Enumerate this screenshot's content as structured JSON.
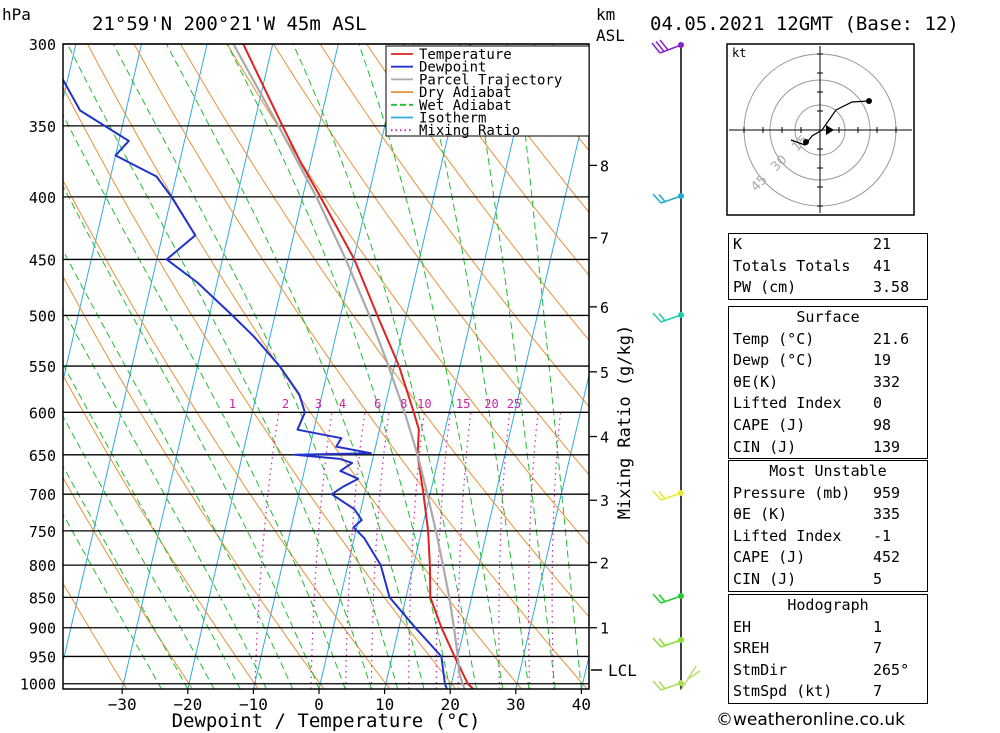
{
  "header": {
    "location": "21°59'N 200°21'W 45m ASL",
    "datetime": "04.05.2021 12GMT (Base: 12)",
    "pressure_unit": "hPa",
    "km_label": "km",
    "asl_label": "ASL"
  },
  "axes": {
    "xlabel": "Dewpoint / Temperature (°C)",
    "mixing_ratio_label": "Mixing Ratio (g/kg)",
    "lcl_label": "LCL",
    "hodo_unit": "kt"
  },
  "chart_data": {
    "type": "line",
    "title": "21°59'N 200°21'W 45m ASL",
    "xlabel": "Dewpoint / Temperature (°C)",
    "ylabel": "hPa",
    "xlim": [
      -40,
      40
    ],
    "pressure_levels": [
      300,
      350,
      400,
      450,
      500,
      550,
      600,
      650,
      700,
      750,
      800,
      850,
      900,
      950,
      1000
    ],
    "x_ticks": [
      -30,
      -20,
      -10,
      0,
      10,
      20,
      30,
      40
    ],
    "km_ticks": [
      {
        "km": 1,
        "p": 900
      },
      {
        "km": 2,
        "p": 796
      },
      {
        "km": 3,
        "p": 708
      },
      {
        "km": 4,
        "p": 628
      },
      {
        "km": 5,
        "p": 556
      },
      {
        "km": 6,
        "p": 492
      },
      {
        "km": 7,
        "p": 432
      },
      {
        "km": 8,
        "p": 377
      }
    ],
    "lcl_pressure": 980,
    "mixing_ratio_values": [
      1,
      2,
      3,
      4,
      6,
      8,
      10,
      15,
      20,
      25
    ],
    "legend": [
      "Temperature",
      "Dewpoint",
      "Parcel Trajectory",
      "Dry Adiabat",
      "Wet Adiabat",
      "Isotherm",
      "Mixing Ratio"
    ],
    "series": [
      {
        "name": "Temperature",
        "color": "#dd2222",
        "points": [
          [
            1010,
            23.5
          ],
          [
            1000,
            22.5
          ],
          [
            950,
            19.5
          ],
          [
            900,
            16.5
          ],
          [
            850,
            13.7
          ],
          [
            800,
            12.5
          ],
          [
            750,
            11
          ],
          [
            700,
            9.0
          ],
          [
            650,
            6.7
          ],
          [
            620,
            6.0
          ],
          [
            600,
            4.6
          ],
          [
            550,
            0.7
          ],
          [
            500,
            -4.4
          ],
          [
            450,
            -9.9
          ],
          [
            400,
            -17.3
          ],
          [
            375,
            -21.5
          ],
          [
            350,
            -25.6
          ],
          [
            300,
            -34.5
          ]
        ]
      },
      {
        "name": "Dewpoint",
        "color": "#2233cc",
        "points": [
          [
            1010,
            19.5
          ],
          [
            1000,
            19.0
          ],
          [
            950,
            17.5
          ],
          [
            900,
            12.5
          ],
          [
            850,
            7.5
          ],
          [
            800,
            5.0
          ],
          [
            760,
            1.5
          ],
          [
            745,
            -0.5
          ],
          [
            735,
            0.5
          ],
          [
            720,
            -1.0
          ],
          [
            700,
            -5.0
          ],
          [
            690,
            -3.5
          ],
          [
            680,
            -1.5
          ],
          [
            670,
            -4.5
          ],
          [
            660,
            -3.0
          ],
          [
            655,
            -5.0
          ],
          [
            650,
            -12.0
          ],
          [
            648,
            -0.5
          ],
          [
            640,
            -6.0
          ],
          [
            630,
            -5.5
          ],
          [
            620,
            -12.5
          ],
          [
            600,
            -12.0
          ],
          [
            580,
            -13.5
          ],
          [
            550,
            -17.5
          ],
          [
            520,
            -22.5
          ],
          [
            500,
            -26.5
          ],
          [
            470,
            -33.0
          ],
          [
            450,
            -38.5
          ],
          [
            430,
            -35.0
          ],
          [
            400,
            -40.0
          ],
          [
            385,
            -43.0
          ],
          [
            370,
            -50.0
          ],
          [
            360,
            -48.5
          ],
          [
            340,
            -57.0
          ],
          [
            300,
            -65.0
          ]
        ]
      },
      {
        "name": "Parcel Trajectory",
        "color": "#aaaaaa",
        "points": [
          [
            1010,
            22.2
          ],
          [
            1000,
            21.7
          ],
          [
            980,
            20.8
          ],
          [
            950,
            20.0
          ],
          [
            900,
            18.4
          ],
          [
            850,
            16.6
          ],
          [
            800,
            14.5
          ],
          [
            750,
            12.2
          ],
          [
            700,
            9.6
          ],
          [
            650,
            6.7
          ],
          [
            600,
            3.2
          ],
          [
            550,
            -0.9
          ],
          [
            500,
            -5.6
          ],
          [
            450,
            -11.2
          ],
          [
            400,
            -17.9
          ],
          [
            350,
            -26.2
          ],
          [
            300,
            -36.0
          ]
        ]
      }
    ]
  },
  "hodograph": {
    "unit": "kt",
    "rings": [
      "15",
      "30",
      "45"
    ]
  },
  "indices": [
    {
      "label": "K",
      "value": "21"
    },
    {
      "label": "Totals Totals",
      "value": "41"
    },
    {
      "label": "PW (cm)",
      "value": "3.58"
    }
  ],
  "surface": {
    "title": "Surface",
    "rows": [
      {
        "label": "Temp (°C)",
        "value": "21.6"
      },
      {
        "label": "Dewp (°C)",
        "value": "19"
      },
      {
        "label": "θE(K)",
        "value": "332"
      },
      {
        "label": "Lifted Index",
        "value": "0"
      },
      {
        "label": "CAPE (J)",
        "value": "98"
      },
      {
        "label": "CIN (J)",
        "value": "139"
      }
    ]
  },
  "most_unstable": {
    "title": "Most Unstable",
    "rows": [
      {
        "label": "Pressure (mb)",
        "value": "959"
      },
      {
        "label": "θE (K)",
        "value": "335"
      },
      {
        "label": "Lifted Index",
        "value": "-1"
      },
      {
        "label": "CAPE (J)",
        "value": "452"
      },
      {
        "label": "CIN (J)",
        "value": "5"
      }
    ]
  },
  "hodograph_params": {
    "title": "Hodograph",
    "rows": [
      {
        "label": "EH",
        "value": "1"
      },
      {
        "label": "SREH",
        "value": "7"
      },
      {
        "label": "StmDir",
        "value": "265°"
      },
      {
        "label": "StmSpd (kt)",
        "value": "7"
      }
    ]
  },
  "copyright": "©weatheronline.co.uk"
}
